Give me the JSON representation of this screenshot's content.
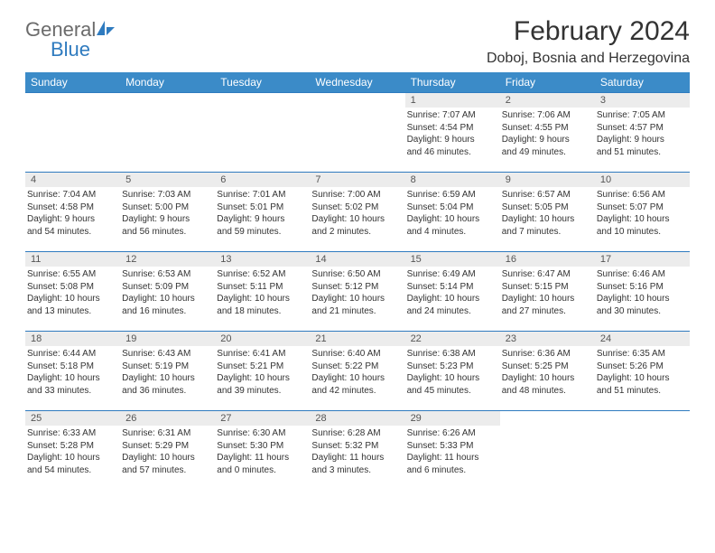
{
  "logo": {
    "text1": "General",
    "text2": "Blue"
  },
  "title": "February 2024",
  "location": "Doboj, Bosnia and Herzegovina",
  "colors": {
    "header_bg": "#3b8bc8",
    "header_text": "#ffffff",
    "daynum_bg": "#ececec",
    "border": "#2f7bbf",
    "logo_gray": "#6b6b6b",
    "logo_blue": "#2f7bbf",
    "text": "#333333"
  },
  "typography": {
    "title_fontsize": 30,
    "location_fontsize": 16,
    "header_fontsize": 12,
    "daynum_fontsize": 11,
    "info_fontsize": 10
  },
  "weekdays": [
    "Sunday",
    "Monday",
    "Tuesday",
    "Wednesday",
    "Thursday",
    "Friday",
    "Saturday"
  ],
  "weeks": [
    [
      null,
      null,
      null,
      null,
      {
        "n": "1",
        "sr": "Sunrise: 7:07 AM",
        "ss": "Sunset: 4:54 PM",
        "d1": "Daylight: 9 hours",
        "d2": "and 46 minutes."
      },
      {
        "n": "2",
        "sr": "Sunrise: 7:06 AM",
        "ss": "Sunset: 4:55 PM",
        "d1": "Daylight: 9 hours",
        "d2": "and 49 minutes."
      },
      {
        "n": "3",
        "sr": "Sunrise: 7:05 AM",
        "ss": "Sunset: 4:57 PM",
        "d1": "Daylight: 9 hours",
        "d2": "and 51 minutes."
      }
    ],
    [
      {
        "n": "4",
        "sr": "Sunrise: 7:04 AM",
        "ss": "Sunset: 4:58 PM",
        "d1": "Daylight: 9 hours",
        "d2": "and 54 minutes."
      },
      {
        "n": "5",
        "sr": "Sunrise: 7:03 AM",
        "ss": "Sunset: 5:00 PM",
        "d1": "Daylight: 9 hours",
        "d2": "and 56 minutes."
      },
      {
        "n": "6",
        "sr": "Sunrise: 7:01 AM",
        "ss": "Sunset: 5:01 PM",
        "d1": "Daylight: 9 hours",
        "d2": "and 59 minutes."
      },
      {
        "n": "7",
        "sr": "Sunrise: 7:00 AM",
        "ss": "Sunset: 5:02 PM",
        "d1": "Daylight: 10 hours",
        "d2": "and 2 minutes."
      },
      {
        "n": "8",
        "sr": "Sunrise: 6:59 AM",
        "ss": "Sunset: 5:04 PM",
        "d1": "Daylight: 10 hours",
        "d2": "and 4 minutes."
      },
      {
        "n": "9",
        "sr": "Sunrise: 6:57 AM",
        "ss": "Sunset: 5:05 PM",
        "d1": "Daylight: 10 hours",
        "d2": "and 7 minutes."
      },
      {
        "n": "10",
        "sr": "Sunrise: 6:56 AM",
        "ss": "Sunset: 5:07 PM",
        "d1": "Daylight: 10 hours",
        "d2": "and 10 minutes."
      }
    ],
    [
      {
        "n": "11",
        "sr": "Sunrise: 6:55 AM",
        "ss": "Sunset: 5:08 PM",
        "d1": "Daylight: 10 hours",
        "d2": "and 13 minutes."
      },
      {
        "n": "12",
        "sr": "Sunrise: 6:53 AM",
        "ss": "Sunset: 5:09 PM",
        "d1": "Daylight: 10 hours",
        "d2": "and 16 minutes."
      },
      {
        "n": "13",
        "sr": "Sunrise: 6:52 AM",
        "ss": "Sunset: 5:11 PM",
        "d1": "Daylight: 10 hours",
        "d2": "and 18 minutes."
      },
      {
        "n": "14",
        "sr": "Sunrise: 6:50 AM",
        "ss": "Sunset: 5:12 PM",
        "d1": "Daylight: 10 hours",
        "d2": "and 21 minutes."
      },
      {
        "n": "15",
        "sr": "Sunrise: 6:49 AM",
        "ss": "Sunset: 5:14 PM",
        "d1": "Daylight: 10 hours",
        "d2": "and 24 minutes."
      },
      {
        "n": "16",
        "sr": "Sunrise: 6:47 AM",
        "ss": "Sunset: 5:15 PM",
        "d1": "Daylight: 10 hours",
        "d2": "and 27 minutes."
      },
      {
        "n": "17",
        "sr": "Sunrise: 6:46 AM",
        "ss": "Sunset: 5:16 PM",
        "d1": "Daylight: 10 hours",
        "d2": "and 30 minutes."
      }
    ],
    [
      {
        "n": "18",
        "sr": "Sunrise: 6:44 AM",
        "ss": "Sunset: 5:18 PM",
        "d1": "Daylight: 10 hours",
        "d2": "and 33 minutes."
      },
      {
        "n": "19",
        "sr": "Sunrise: 6:43 AM",
        "ss": "Sunset: 5:19 PM",
        "d1": "Daylight: 10 hours",
        "d2": "and 36 minutes."
      },
      {
        "n": "20",
        "sr": "Sunrise: 6:41 AM",
        "ss": "Sunset: 5:21 PM",
        "d1": "Daylight: 10 hours",
        "d2": "and 39 minutes."
      },
      {
        "n": "21",
        "sr": "Sunrise: 6:40 AM",
        "ss": "Sunset: 5:22 PM",
        "d1": "Daylight: 10 hours",
        "d2": "and 42 minutes."
      },
      {
        "n": "22",
        "sr": "Sunrise: 6:38 AM",
        "ss": "Sunset: 5:23 PM",
        "d1": "Daylight: 10 hours",
        "d2": "and 45 minutes."
      },
      {
        "n": "23",
        "sr": "Sunrise: 6:36 AM",
        "ss": "Sunset: 5:25 PM",
        "d1": "Daylight: 10 hours",
        "d2": "and 48 minutes."
      },
      {
        "n": "24",
        "sr": "Sunrise: 6:35 AM",
        "ss": "Sunset: 5:26 PM",
        "d1": "Daylight: 10 hours",
        "d2": "and 51 minutes."
      }
    ],
    [
      {
        "n": "25",
        "sr": "Sunrise: 6:33 AM",
        "ss": "Sunset: 5:28 PM",
        "d1": "Daylight: 10 hours",
        "d2": "and 54 minutes."
      },
      {
        "n": "26",
        "sr": "Sunrise: 6:31 AM",
        "ss": "Sunset: 5:29 PM",
        "d1": "Daylight: 10 hours",
        "d2": "and 57 minutes."
      },
      {
        "n": "27",
        "sr": "Sunrise: 6:30 AM",
        "ss": "Sunset: 5:30 PM",
        "d1": "Daylight: 11 hours",
        "d2": "and 0 minutes."
      },
      {
        "n": "28",
        "sr": "Sunrise: 6:28 AM",
        "ss": "Sunset: 5:32 PM",
        "d1": "Daylight: 11 hours",
        "d2": "and 3 minutes."
      },
      {
        "n": "29",
        "sr": "Sunrise: 6:26 AM",
        "ss": "Sunset: 5:33 PM",
        "d1": "Daylight: 11 hours",
        "d2": "and 6 minutes."
      },
      null,
      null
    ]
  ]
}
